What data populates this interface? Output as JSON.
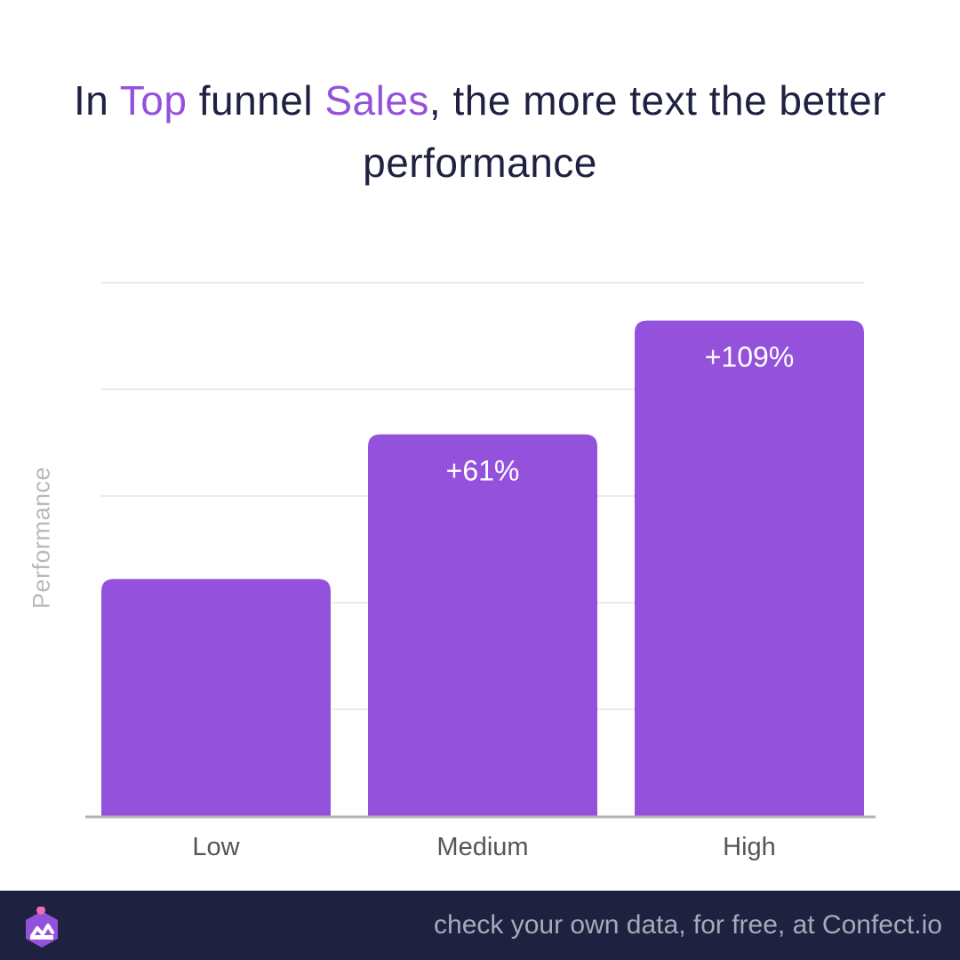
{
  "title": {
    "part1": "In ",
    "highlight1": "Top",
    "part2": " funnel ",
    "highlight2": "Sales",
    "part3": ", the more text the better performance"
  },
  "colors": {
    "bar": "#9452dc",
    "highlight": "#9452dc",
    "title": "#1e2140",
    "footer_bg": "#1e2140",
    "footer_text": "#a9a9ba",
    "grid": "#e6e6e6",
    "axis": "#b3b3b3",
    "tick_label": "#555555",
    "ylabel": "#b9b9b9"
  },
  "chart_data": {
    "type": "bar",
    "categories": [
      "Low",
      "Medium",
      "High"
    ],
    "values": [
      100,
      161,
      209
    ],
    "data_labels": [
      "",
      "+61%",
      "+109%"
    ],
    "ylabel": "Performance",
    "xlabel": "",
    "ylim": [
      0,
      225
    ],
    "grid": true,
    "y_tick_labels_shown": false
  },
  "footer": {
    "text": "check your own data, for free, at Confect.io",
    "logo_icon": "confect-logo-icon"
  }
}
